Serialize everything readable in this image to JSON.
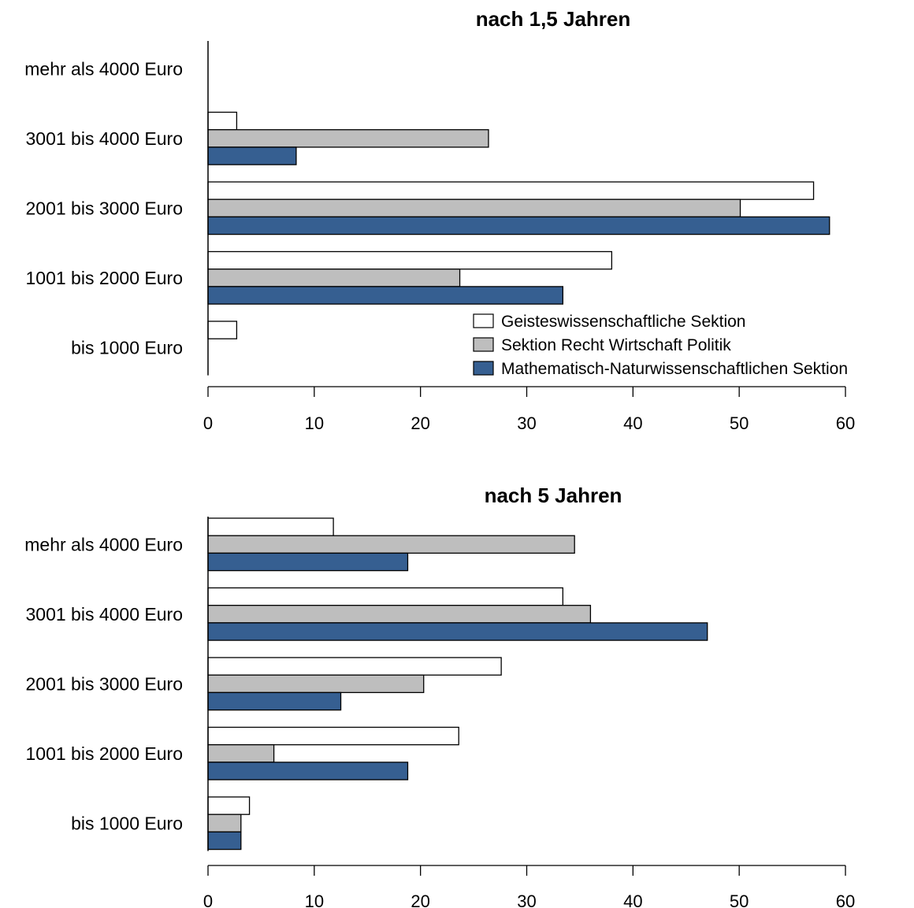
{
  "colors": {
    "geistes": "#ffffff",
    "recht": "#bebebe",
    "mathe": "#365f91",
    "stroke": "#000000"
  },
  "legend": {
    "items": [
      "Geisteswissenschaftliche Sektion",
      "Sektion Recht Wirtschaft Politik",
      "Mathematisch-Naturwissenschaftlichen Sektion"
    ]
  },
  "chart_data": [
    {
      "type": "bar",
      "orientation": "horizontal",
      "title": "nach 1,5 Jahren",
      "categories": [
        "mehr als 4000 Euro",
        "3001 bis 4000 Euro",
        "2001 bis 3000 Euro",
        "1001 bis 2000 Euro",
        "bis 1000 Euro"
      ],
      "series": [
        {
          "name": "Geisteswissenschaftliche Sektion",
          "values": [
            0,
            2.7,
            57.0,
            38.0,
            2.7
          ]
        },
        {
          "name": "Sektion Recht Wirtschaft Politik",
          "values": [
            0,
            26.4,
            50.1,
            23.7,
            0
          ]
        },
        {
          "name": "Mathematisch-Naturwissenschaftlichen Sektion",
          "values": [
            0,
            8.3,
            58.5,
            33.4,
            0
          ]
        }
      ],
      "xlim": [
        0,
        60
      ],
      "xticks": [
        "0",
        "10",
        "20",
        "30",
        "40",
        "50",
        "60"
      ],
      "legend": "inside-lower-right",
      "grid": false
    },
    {
      "type": "bar",
      "orientation": "horizontal",
      "title": "nach 5 Jahren",
      "categories": [
        "mehr als 4000 Euro",
        "3001 bis 4000 Euro",
        "2001 bis 3000 Euro",
        "1001 bis 2000 Euro",
        "bis 1000 Euro"
      ],
      "series": [
        {
          "name": "Geisteswissenschaftliche Sektion",
          "values": [
            11.8,
            33.4,
            27.6,
            23.6,
            3.9
          ]
        },
        {
          "name": "Sektion Recht Wirtschaft Politik",
          "values": [
            34.5,
            36.0,
            20.3,
            6.2,
            3.1
          ]
        },
        {
          "name": "Mathematisch-Naturwissenschaftlichen Sektion",
          "values": [
            18.8,
            47.0,
            12.5,
            18.8,
            3.1
          ]
        }
      ],
      "xlim": [
        0,
        60
      ],
      "xticks": [
        "0",
        "10",
        "20",
        "30",
        "40",
        "50",
        "60"
      ],
      "grid": false
    }
  ]
}
